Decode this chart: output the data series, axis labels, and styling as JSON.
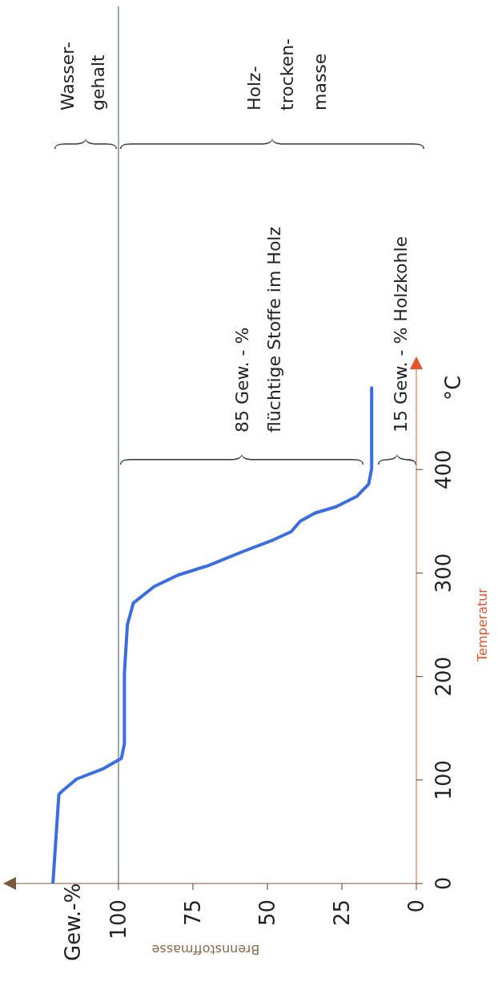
{
  "chart_data": {
    "type": "line",
    "xlabel": "Brennstoffmasse",
    "ylabel": "Temperatur",
    "x": [
      122,
      120,
      119,
      114,
      105,
      99,
      98,
      98,
      97,
      95,
      88,
      80,
      70,
      58,
      48,
      42,
      39,
      34,
      27,
      20,
      16,
      15,
      15
    ],
    "series": [
      {
        "color": "#3a6ee0",
        "values": [
          0,
          86,
          89,
          101,
          111,
          121,
          135,
          203,
          250,
          271,
          287,
          298,
          307,
          321,
          332,
          340,
          350,
          358,
          364,
          374,
          386,
          401,
          479
        ]
      }
    ],
    "xlim": [
      136,
      0
    ],
    "xticks": [
      100,
      75,
      50,
      25,
      0
    ],
    "ylim": [
      0,
      500
    ],
    "yticks": [
      0,
      100,
      200,
      300,
      400
    ],
    "ref_lines": [
      {
        "axis": "x",
        "value": 100,
        "color": "#9aa8a8"
      }
    ],
    "marker": "none",
    "annotations": [
      "Wasser-\ngehalt",
      "Holz-\ntrocken-\nmasse",
      "85 Gew. - %\nflüchtige Stoffe im Holz",
      "15 Gew. - % Holzkohle",
      "Gew.-%",
      "°C"
    ]
  }
}
